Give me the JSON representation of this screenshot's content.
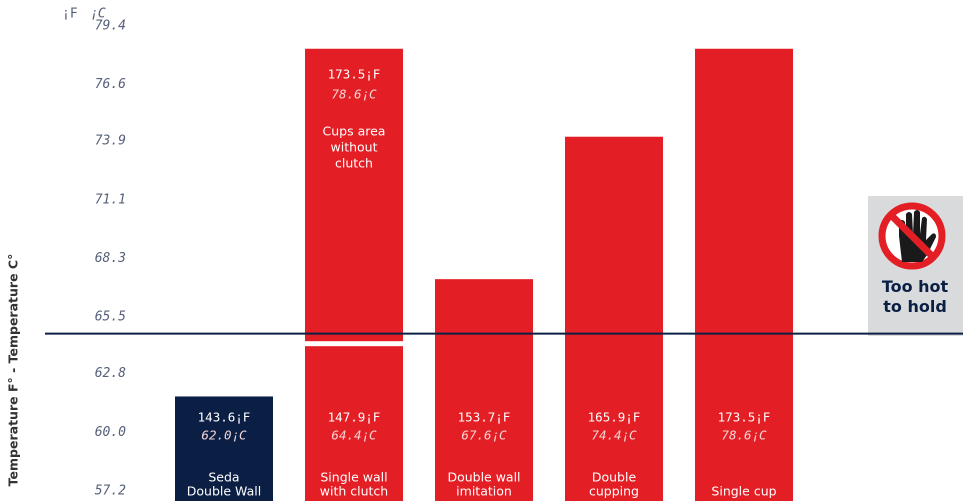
{
  "chart_data": {
    "type": "bar",
    "unit_f": "¡F",
    "unit_c": "¡C",
    "y_label": "Temperature F° - Temperature C°",
    "categories": [
      [
        "Seda",
        "Double Wall"
      ],
      [
        "Single wall",
        "with clutch"
      ],
      [
        "Double wall",
        "imitation"
      ],
      [
        "Double",
        "cupping"
      ],
      [
        "Single cup"
      ]
    ],
    "values": [
      62.0,
      64.4,
      67.6,
      74.4,
      78.6
    ],
    "value_labels": [
      "62.0¡C",
      "64.4¡C",
      "67.6¡C",
      "74.4¡C",
      "78.6¡C"
    ],
    "f_labels": [
      "143.6¡F",
      "147.9¡F",
      "153.7¡F",
      "165.9¡F",
      "173.5¡F"
    ],
    "colors": [
      "#0b1f45",
      "#e31e24",
      "#e31e24",
      "#e31e24",
      "#e31e24"
    ],
    "annotation": {
      "value": 78.6,
      "value_label": "78.6¡C",
      "f_label": "173.5¡F",
      "text": [
        "Cups area",
        "without",
        "clutch"
      ]
    },
    "threshold": {
      "value": 65.0,
      "label": [
        "Too hot",
        "to hold"
      ],
      "color": "#0b1f45"
    },
    "ylim": [
      57.2,
      79.4
    ],
    "yticks": [
      79.4,
      76.6,
      73.9,
      71.1,
      68.3,
      65.5,
      62.8,
      {
        "value": 60,
        "label": "60.0"
      },
      57.2
    ]
  }
}
